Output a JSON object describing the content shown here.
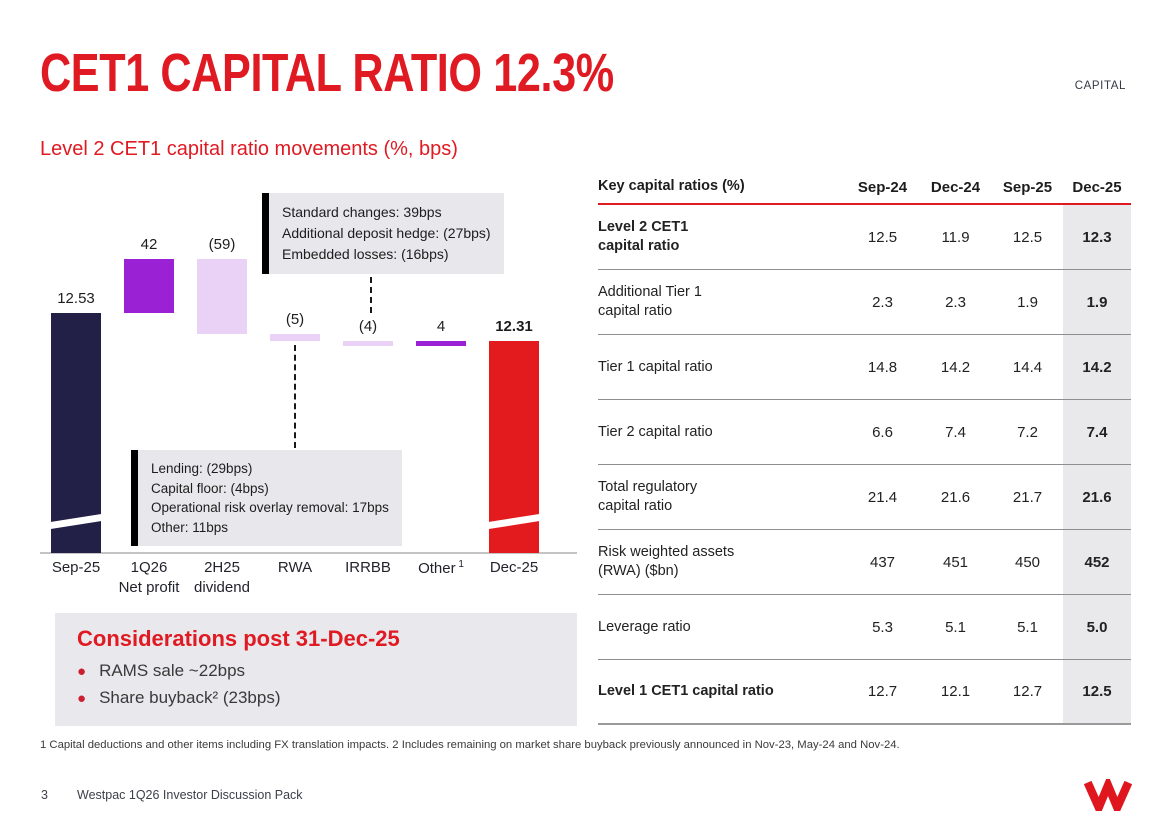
{
  "slide": {
    "title": "CET1 CAPITAL RATIO 12.3%",
    "section_tag": "CAPITAL",
    "footnote": "1 Capital deductions and other items including FX translation impacts. 2 Includes remaining on market share buyback previously announced in Nov-23, May-24 and Nov-24.",
    "page_number": "3",
    "footer_text": "Westpac 1Q26 Investor Discussion Pack",
    "logo": "westpac-w-logo"
  },
  "colors": {
    "accent_red": "#E01A22",
    "navy": "#232048",
    "purple": "#9A22D4",
    "lavender": "#E9D2F6",
    "bar_red": "#E41B1E",
    "panel_gray": "#E8E7EB"
  },
  "chart_data": {
    "type": "bar",
    "subtype": "waterfall",
    "title": "Level 2 CET1 capital ratio movements (%, bps)",
    "axis_break": true,
    "bars": [
      {
        "category": [
          "Sep-25"
        ],
        "kind": "total",
        "value": 12.53,
        "label": "12.53",
        "color": "#232048",
        "bold": false
      },
      {
        "category": [
          "1Q26",
          "Net profit"
        ],
        "kind": "delta",
        "value": 0.42,
        "label": "42",
        "color": "#9A22D4",
        "bold": false
      },
      {
        "category": [
          "2H25",
          "dividend"
        ],
        "kind": "delta",
        "value": -0.59,
        "label": "(59)",
        "color": "#E9D2F6",
        "bold": false
      },
      {
        "category": [
          "RWA"
        ],
        "kind": "delta",
        "value": -0.05,
        "label": "(5)",
        "color": "#E9D2F6",
        "bold": false
      },
      {
        "category": [
          "IRRBB"
        ],
        "kind": "delta",
        "value": -0.04,
        "label": "(4)",
        "color": "#E9D2F6",
        "bold": false
      },
      {
        "category": [
          "Other"
        ],
        "sup": "1",
        "kind": "delta",
        "value": 0.04,
        "label": "4",
        "color": "#9A22D4",
        "bold": false
      },
      {
        "category": [
          "Dec-25"
        ],
        "kind": "total",
        "value": 12.31,
        "label": "12.31",
        "color": "#E41B1E",
        "bold": true
      }
    ],
    "annotations": [
      {
        "target": "IRRBB",
        "lines": [
          "Standard changes: 39bps",
          "Additional deposit hedge: (27bps)",
          "Embedded losses: (16bps)"
        ]
      },
      {
        "target": "RWA",
        "lines": [
          "Lending: (29bps)",
          "Capital floor: (4bps)",
          "Operational risk overlay removal: 17bps",
          "Other: 11bps"
        ]
      }
    ]
  },
  "table": {
    "title": "Key capital ratios (%)",
    "columns": [
      "Sep-24",
      "Dec-24",
      "Sep-25",
      "Dec-25"
    ],
    "rows": [
      {
        "label": "Level 2 CET1\ncapital ratio",
        "bold": true,
        "values": [
          "12.5",
          "11.9",
          "12.5",
          "12.3"
        ]
      },
      {
        "label": "Additional Tier 1\ncapital ratio",
        "bold": false,
        "values": [
          "2.3",
          "2.3",
          "1.9",
          "1.9"
        ]
      },
      {
        "label": "Tier 1 capital ratio",
        "bold": false,
        "values": [
          "14.8",
          "14.2",
          "14.4",
          "14.2"
        ]
      },
      {
        "label": "Tier 2 capital ratio",
        "bold": false,
        "values": [
          "6.6",
          "7.4",
          "7.2",
          "7.4"
        ]
      },
      {
        "label": "Total regulatory\ncapital ratio",
        "bold": false,
        "values": [
          "21.4",
          "21.6",
          "21.7",
          "21.6"
        ]
      },
      {
        "label": "Risk weighted assets\n(RWA) ($bn)",
        "bold": false,
        "values": [
          "437",
          "451",
          "450",
          "452"
        ]
      },
      {
        "label": "Leverage ratio",
        "bold": false,
        "values": [
          "5.3",
          "5.1",
          "5.1",
          "5.0"
        ]
      },
      {
        "label": "Level 1 CET1 capital ratio",
        "bold": true,
        "values": [
          "12.7",
          "12.1",
          "12.7",
          "12.5"
        ]
      }
    ]
  },
  "considerations": {
    "heading": "Considerations post 31-Dec-25",
    "bullets": [
      "RAMS sale ~22bps",
      "Share buyback² (23bps)"
    ]
  }
}
